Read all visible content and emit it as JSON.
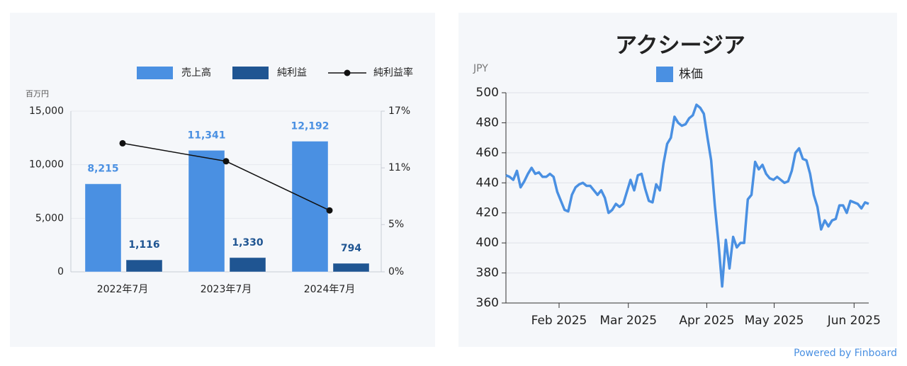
{
  "chart_data": [
    {
      "type": "combo",
      "y_unit_label": "百万円",
      "categories": [
        "2022年7月",
        "2023年7月",
        "2024年7月"
      ],
      "series": [
        {
          "name": "売上高",
          "color": "#4a90e2",
          "values": [
            8215,
            11341,
            12192
          ],
          "value_labels": [
            "8,215",
            "11,341",
            "12,192"
          ]
        },
        {
          "name": "純利益",
          "color": "#1f5592",
          "values": [
            1116,
            1330,
            794
          ],
          "value_labels": [
            "1,116",
            "1,330",
            "794"
          ]
        },
        {
          "name": "純利益率",
          "type": "line",
          "axis": "y2",
          "color": "#111111",
          "values": [
            13.6,
            11.7,
            6.5
          ]
        }
      ],
      "ylim": [
        0,
        15000
      ],
      "yticks": [
        0,
        {
          "value": 5000,
          "label": "5,000"
        },
        {
          "value": 10000,
          "label": "10,000"
        },
        {
          "value": 15000,
          "label": "15,000"
        }
      ],
      "y2lim": [
        0,
        17
      ],
      "y2ticks": [
        {
          "value": 0,
          "label": "0%"
        },
        {
          "value": 5,
          "label": "5%"
        },
        {
          "value": 11,
          "label": "11%"
        },
        {
          "value": 17,
          "label": "17%"
        }
      ],
      "grid": true,
      "legend": "top-right"
    },
    {
      "type": "line",
      "title": "アクシージア",
      "y_unit_label": "JPY",
      "series": [
        {
          "name": "株価",
          "color": "#4a90e2",
          "values": [
            445,
            444,
            442,
            448,
            437,
            441,
            446,
            450,
            446,
            447,
            444,
            444,
            446,
            444,
            434,
            428,
            422,
            421,
            432,
            437,
            439,
            440,
            438,
            438,
            435,
            432,
            435,
            430,
            420,
            422,
            426,
            424,
            426,
            434,
            442,
            435,
            445,
            446,
            436,
            428,
            427,
            439,
            435,
            453,
            466,
            470,
            484,
            480,
            478,
            479,
            483,
            485,
            492,
            490,
            486,
            470,
            455,
            425,
            400,
            371,
            402,
            383,
            404,
            397,
            400,
            400,
            429,
            432,
            454,
            449,
            452,
            446,
            443,
            442,
            444,
            442,
            440,
            441,
            448,
            460,
            463,
            456,
            455,
            446,
            432,
            424,
            409,
            415,
            411,
            415,
            416,
            425,
            425,
            420,
            428,
            427,
            426,
            423,
            427,
            426
          ]
        }
      ],
      "xlim": [
        0,
        99
      ],
      "xticks": [
        {
          "value": 14.5,
          "label": "Feb 2025"
        },
        {
          "value": 33.4,
          "label": "Mar 2025"
        },
        {
          "value": 54.8,
          "label": "Apr 2025"
        },
        {
          "value": 73.2,
          "label": "May 2025"
        },
        {
          "value": 95,
          "label": "Jun 2025"
        }
      ],
      "ylim": [
        360,
        500
      ],
      "yticks": [
        360,
        380,
        400,
        420,
        440,
        460,
        480,
        500
      ],
      "grid": true,
      "legend": "top-center"
    }
  ],
  "footer": "Powered by Finboard"
}
